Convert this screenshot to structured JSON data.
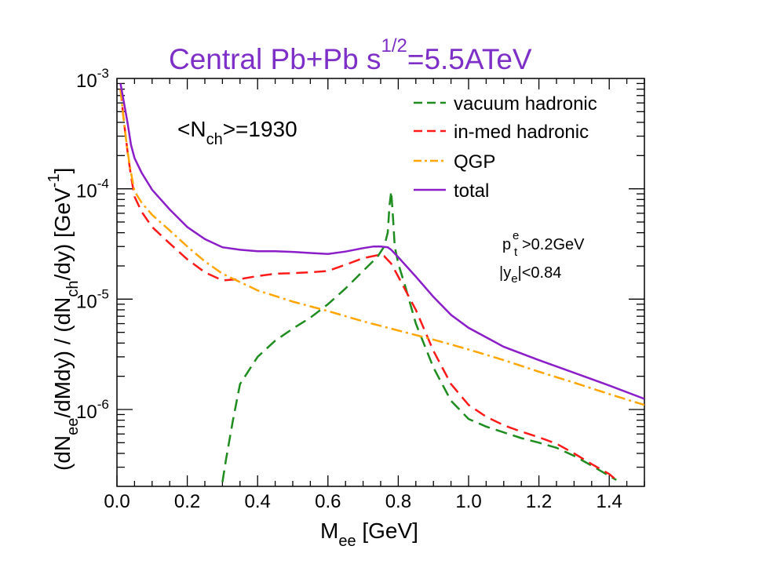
{
  "chart_data": {
    "type": "line",
    "title": {
      "main": "Central Pb+Pb  s",
      "sup": "1/2",
      "tail": "=5.5ATeV",
      "color": "#7d2fc7"
    },
    "xlabel": {
      "base": "M",
      "sub": "ee",
      "tail": " [GeV]"
    },
    "ylabel": {
      "p1": "(dN",
      "s1": "ee",
      "p2": "/dMdy) / (dN",
      "s2": "ch",
      "p3": "/dy)  [GeV",
      "sup": "-1",
      "p4": "]"
    },
    "xlim": [
      0.0,
      1.5
    ],
    "ylim": [
      2.2e-07,
      0.001
    ],
    "yscale": "log",
    "x_ticks": [
      "0.0",
      "0.2",
      "0.4",
      "0.6",
      "0.8",
      "1.0",
      "1.2",
      "1.4"
    ],
    "y_ticks": [
      {
        "value": 0.001,
        "base": "10",
        "exp": "-3"
      },
      {
        "value": 0.0001,
        "base": "10",
        "exp": "-4"
      },
      {
        "value": 1e-05,
        "base": "10",
        "exp": "-5"
      },
      {
        "value": 1e-06,
        "base": "10",
        "exp": "-6"
      }
    ],
    "annotations": {
      "nch": {
        "pre": "<N",
        "sub": "ch",
        "post": ">=1930"
      },
      "pt": {
        "base": "p",
        "sub": "t",
        "sup": "e",
        "post": ">0.2GeV"
      },
      "y": {
        "pre": "|y",
        "sub": "e",
        "post": "|<0.84"
      }
    },
    "legend_position": "top-right",
    "series": [
      {
        "name": "vacuum hadronic",
        "color": "#1e8c1e",
        "dash": "dash",
        "x": [
          0.3,
          0.31,
          0.33,
          0.35,
          0.4,
          0.45,
          0.5,
          0.55,
          0.6,
          0.65,
          0.7,
          0.74,
          0.76,
          0.77,
          0.775,
          0.78,
          0.785,
          0.79,
          0.8,
          0.82,
          0.85,
          0.9,
          0.95,
          1.0,
          1.05,
          1.1,
          1.15,
          1.2,
          1.25,
          1.3,
          1.35,
          1.4,
          1.42
        ],
        "y": [
          2.2e-07,
          3.5e-07,
          8e-07,
          1.7e-06,
          3e-06,
          4.2e-06,
          5.4e-06,
          6.8e-06,
          9e-06,
          1.25e-05,
          1.8e-05,
          2.4e-05,
          3e-05,
          4e-05,
          7e-05,
          9.5e-05,
          5.5e-05,
          3e-05,
          2.1e-05,
          1.3e-05,
          6e-06,
          2.4e-06,
          1.2e-06,
          8.2e-07,
          7e-07,
          6.2e-07,
          5.5e-07,
          5e-07,
          4.5e-07,
          3.8e-07,
          3.1e-07,
          2.5e-07,
          2.3e-07
        ]
      },
      {
        "name": "in-med hadronic",
        "color": "#ff1a1a",
        "dash": "dash",
        "x": [
          0.01,
          0.02,
          0.03,
          0.04,
          0.05,
          0.07,
          0.1,
          0.15,
          0.2,
          0.25,
          0.3,
          0.35,
          0.4,
          0.45,
          0.5,
          0.55,
          0.6,
          0.65,
          0.7,
          0.74,
          0.76,
          0.78,
          0.8,
          0.85,
          0.9,
          0.95,
          1.0,
          1.05,
          1.1,
          1.15,
          1.2,
          1.25,
          1.3,
          1.35,
          1.4,
          1.42
        ],
        "y": [
          0.0008,
          0.0004,
          0.00022,
          0.00013,
          8.5e-05,
          6.2e-05,
          4.5e-05,
          3.2e-05,
          2.3e-05,
          1.75e-05,
          1.48e-05,
          1.52e-05,
          1.62e-05,
          1.7e-05,
          1.72e-05,
          1.75e-05,
          1.8e-05,
          2.05e-05,
          2.35e-05,
          2.5e-05,
          2.45e-05,
          2.1e-05,
          1.6e-05,
          8e-06,
          3.4e-06,
          1.7e-06,
          1.1e-06,
          8.6e-07,
          7.2e-07,
          6.3e-07,
          5.6e-07,
          4.9e-07,
          4e-07,
          3.2e-07,
          2.6e-07,
          2.3e-07
        ]
      },
      {
        "name": "QGP",
        "color": "#ffa500",
        "dash": "dashdot",
        "x": [
          0.01,
          0.02,
          0.03,
          0.04,
          0.05,
          0.07,
          0.1,
          0.15,
          0.2,
          0.25,
          0.3,
          0.4,
          0.5,
          0.6,
          0.7,
          0.8,
          0.9,
          1.0,
          1.1,
          1.2,
          1.3,
          1.4,
          1.5
        ],
        "y": [
          0.0008,
          0.0004,
          0.00022,
          0.00014,
          9.5e-05,
          7.5e-05,
          5.8e-05,
          4.2e-05,
          3e-05,
          2.2e-05,
          1.7e-05,
          1.2e-05,
          9.5e-06,
          7.8e-06,
          6.3e-06,
          5.2e-06,
          4.3e-06,
          3.5e-06,
          2.8e-06,
          2.2e-06,
          1.75e-06,
          1.38e-06,
          1.1e-06
        ]
      },
      {
        "name": "total",
        "color": "#8b1ec8",
        "dash": "solid",
        "x": [
          0.01,
          0.02,
          0.03,
          0.04,
          0.05,
          0.07,
          0.1,
          0.15,
          0.2,
          0.25,
          0.3,
          0.35,
          0.4,
          0.45,
          0.5,
          0.55,
          0.6,
          0.65,
          0.7,
          0.73,
          0.75,
          0.77,
          0.78,
          0.8,
          0.85,
          0.9,
          0.95,
          1.0,
          1.1,
          1.2,
          1.3,
          1.4,
          1.5
        ],
        "y": [
          0.0009,
          0.0006,
          0.0004,
          0.00025,
          0.00019,
          0.00014,
          9.8e-05,
          6.5e-05,
          4.5e-05,
          3.5e-05,
          2.95e-05,
          2.8e-05,
          2.72e-05,
          2.72e-05,
          2.68e-05,
          2.62e-05,
          2.57e-05,
          2.7e-05,
          2.9e-05,
          3e-05,
          3e-05,
          2.95e-05,
          2.8e-05,
          2.4e-05,
          1.6e-05,
          1.05e-05,
          7.2e-06,
          5.5e-06,
          3.7e-06,
          2.8e-06,
          2.15e-06,
          1.65e-06,
          1.25e-06
        ]
      }
    ]
  }
}
